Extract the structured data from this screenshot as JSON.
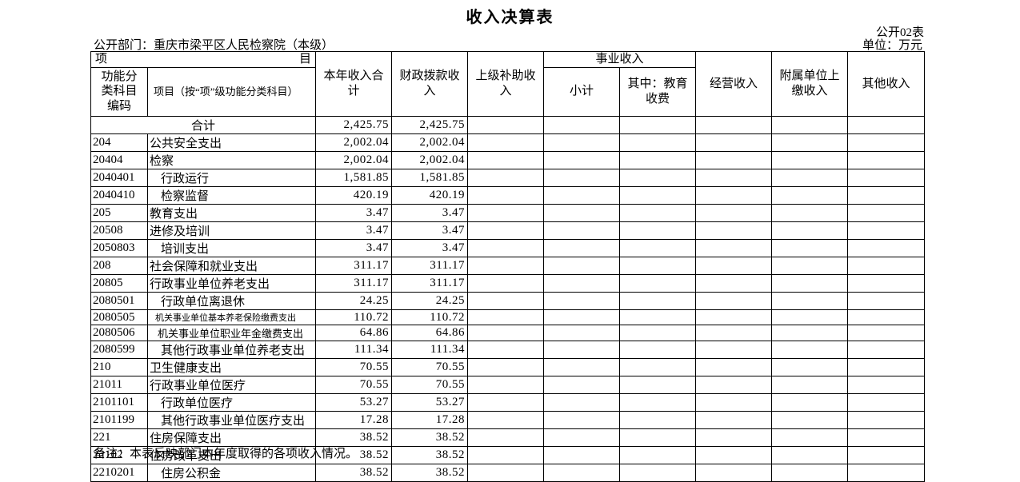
{
  "page": {
    "title": "收入决算表",
    "table_code": "公开02表",
    "department_label": "公开部门：重庆市梁平区人民检察院（本级）",
    "unit_label": "单位：万元",
    "note": "备注：本表反映部门本年度取得的各项收入情况。"
  },
  "table": {
    "header": {
      "item_left": "项",
      "item_right": "目",
      "func_code": "功能分\n类科目\n编码",
      "item_name": "项目（按“项”级功能分类科目）",
      "total_income": "本年收入合\n计",
      "fiscal_income": "财政拨款收\n入",
      "superior_subsidy": "上级补助收\n入",
      "business_income_group": "事业收入",
      "subtotal": "小计",
      "education_fee": "其中：教育\n收费",
      "operating_income": "经营收入",
      "affiliated_income": "附属单位上\n缴收入",
      "other_income": "其他收入"
    },
    "rows": [
      {
        "code": "",
        "name": "合计",
        "total_row": true,
        "values": [
          "2,425.75",
          "2,425.75",
          "",
          "",
          "",
          "",
          "",
          ""
        ]
      },
      {
        "code": "204",
        "name": "公共安全支出",
        "indent": false,
        "values": [
          "2,002.04",
          "2,002.04",
          "",
          "",
          "",
          "",
          "",
          ""
        ]
      },
      {
        "code": "20404",
        "name": "检察",
        "indent": false,
        "values": [
          "2,002.04",
          "2,002.04",
          "",
          "",
          "",
          "",
          "",
          ""
        ]
      },
      {
        "code": "2040401",
        "name": "行政运行",
        "indent": true,
        "values": [
          "1,581.85",
          "1,581.85",
          "",
          "",
          "",
          "",
          "",
          ""
        ]
      },
      {
        "code": "2040410",
        "name": "检察监督",
        "indent": true,
        "values": [
          "420.19",
          "420.19",
          "",
          "",
          "",
          "",
          "",
          ""
        ]
      },
      {
        "code": "205",
        "name": "教育支出",
        "indent": false,
        "values": [
          "3.47",
          "3.47",
          "",
          "",
          "",
          "",
          "",
          ""
        ]
      },
      {
        "code": "20508",
        "name": "进修及培训",
        "indent": false,
        "values": [
          "3.47",
          "3.47",
          "",
          "",
          "",
          "",
          "",
          ""
        ]
      },
      {
        "code": "2050803",
        "name": "培训支出",
        "indent": true,
        "values": [
          "3.47",
          "3.47",
          "",
          "",
          "",
          "",
          "",
          ""
        ]
      },
      {
        "code": "208",
        "name": "社会保障和就业支出",
        "indent": false,
        "values": [
          "311.17",
          "311.17",
          "",
          "",
          "",
          "",
          "",
          ""
        ]
      },
      {
        "code": "20805",
        "name": "行政事业单位养老支出",
        "indent": false,
        "values": [
          "311.17",
          "311.17",
          "",
          "",
          "",
          "",
          "",
          ""
        ]
      },
      {
        "code": "2080501",
        "name": "行政单位离退休",
        "indent": true,
        "values": [
          "24.25",
          "24.25",
          "",
          "",
          "",
          "",
          "",
          ""
        ]
      },
      {
        "code": "2080505",
        "name": "机关事业单位基本养老保险缴费支出",
        "indent": true,
        "size": "sz11",
        "values": [
          "110.72",
          "110.72",
          "",
          "",
          "",
          "",
          "",
          ""
        ]
      },
      {
        "code": "2080506",
        "name": "机关事业单位职业年金缴费支出",
        "indent": true,
        "size": "sz12",
        "values": [
          "64.86",
          "64.86",
          "",
          "",
          "",
          "",
          "",
          ""
        ]
      },
      {
        "code": "2080599",
        "name": "其他行政事业单位养老支出",
        "indent": true,
        "values": [
          "111.34",
          "111.34",
          "",
          "",
          "",
          "",
          "",
          ""
        ]
      },
      {
        "code": "210",
        "name": "卫生健康支出",
        "indent": false,
        "values": [
          "70.55",
          "70.55",
          "",
          "",
          "",
          "",
          "",
          ""
        ]
      },
      {
        "code": "21011",
        "name": "行政事业单位医疗",
        "indent": false,
        "values": [
          "70.55",
          "70.55",
          "",
          "",
          "",
          "",
          "",
          ""
        ]
      },
      {
        "code": "2101101",
        "name": "行政单位医疗",
        "indent": true,
        "values": [
          "53.27",
          "53.27",
          "",
          "",
          "",
          "",
          "",
          ""
        ]
      },
      {
        "code": "2101199",
        "name": "其他行政事业单位医疗支出",
        "indent": true,
        "values": [
          "17.28",
          "17.28",
          "",
          "",
          "",
          "",
          "",
          ""
        ]
      },
      {
        "code": "221",
        "name": "住房保障支出",
        "indent": false,
        "values": [
          "38.52",
          "38.52",
          "",
          "",
          "",
          "",
          "",
          ""
        ]
      },
      {
        "code": "22102",
        "name": "住房改革支出",
        "indent": false,
        "values": [
          "38.52",
          "38.52",
          "",
          "",
          "",
          "",
          "",
          ""
        ]
      },
      {
        "code": "2210201",
        "name": "住房公积金",
        "indent": true,
        "values": [
          "38.52",
          "38.52",
          "",
          "",
          "",
          "",
          "",
          ""
        ]
      }
    ]
  }
}
